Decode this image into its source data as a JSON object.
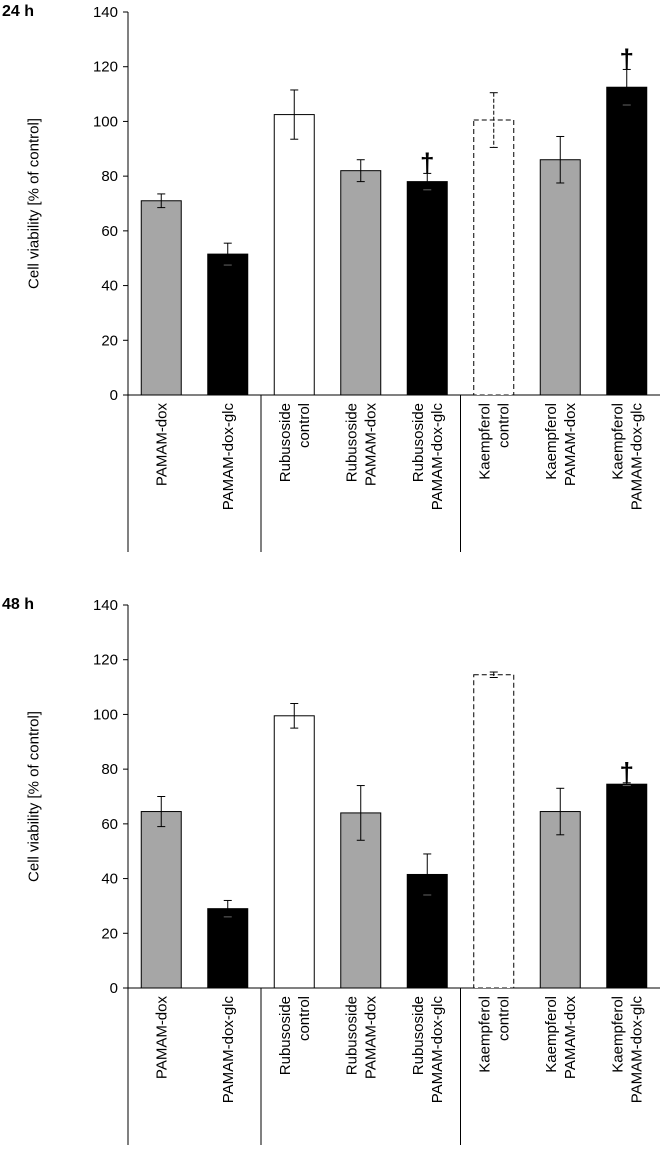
{
  "chart_data": [
    {
      "type": "bar",
      "title": "24 h",
      "ylabel": "Cell viability [% of control]",
      "xlabel": "",
      "ylim": [
        0,
        140
      ],
      "yticks": [
        0,
        20,
        40,
        60,
        80,
        100,
        120,
        140
      ],
      "categories": [
        [
          "PAMAM-dox"
        ],
        [
          "PAMAM-dox-glc"
        ],
        [
          "Rubusoside",
          "control"
        ],
        [
          "Rubusoside",
          "PAMAM-dox"
        ],
        [
          "Rubusoside",
          "PAMAM-dox-glc"
        ],
        [
          "Kaempferol",
          "control"
        ],
        [
          "Kaempferol",
          "PAMAM-dox"
        ],
        [
          "Kaempferol",
          "PAMAM-dox-glc"
        ]
      ],
      "values": [
        71,
        51.5,
        102.5,
        82,
        78,
        100.5,
        86,
        112.5
      ],
      "errors": [
        2.5,
        4,
        9,
        4,
        3,
        10,
        8.5,
        6.5
      ],
      "bar_styles": [
        "gray",
        "black",
        "white",
        "gray",
        "black",
        "dashed",
        "gray",
        "black"
      ],
      "markers": [
        {
          "bar_index": 4,
          "symbol": "†"
        },
        {
          "bar_index": 7,
          "symbol": "†"
        }
      ],
      "group_separators_after": [
        1,
        4
      ],
      "colors": {
        "gray": "#a6a6a6",
        "black": "#000000",
        "white": "#ffffff",
        "outline": "#000000"
      }
    },
    {
      "type": "bar",
      "title": "48 h",
      "ylabel": "Cell viability [% of control]",
      "xlabel": "",
      "ylim": [
        0,
        140
      ],
      "yticks": [
        0,
        20,
        40,
        60,
        80,
        100,
        120,
        140
      ],
      "categories": [
        [
          "PAMAM-dox"
        ],
        [
          "PAMAM-dox-glc"
        ],
        [
          "Rubusoside",
          "control"
        ],
        [
          "Rubusoside",
          "PAMAM-dox"
        ],
        [
          "Rubusoside",
          "PAMAM-dox-glc"
        ],
        [
          "Kaempferol",
          "control"
        ],
        [
          "Kaempferol",
          "PAMAM-dox"
        ],
        [
          "Kaempferol",
          "PAMAM-dox-glc"
        ]
      ],
      "values": [
        64.5,
        29,
        99.5,
        64,
        41.5,
        114.5,
        64.5,
        74.5
      ],
      "errors": [
        5.5,
        3,
        4.5,
        10,
        7.5,
        1,
        8.5,
        0.5
      ],
      "bar_styles": [
        "gray",
        "black",
        "white",
        "gray",
        "black",
        "dashed",
        "gray",
        "black"
      ],
      "markers": [
        {
          "bar_index": 7,
          "symbol": "†"
        }
      ],
      "group_separators_after": [
        1,
        4
      ],
      "colors": {
        "gray": "#a6a6a6",
        "black": "#000000",
        "white": "#ffffff",
        "outline": "#000000"
      }
    }
  ]
}
